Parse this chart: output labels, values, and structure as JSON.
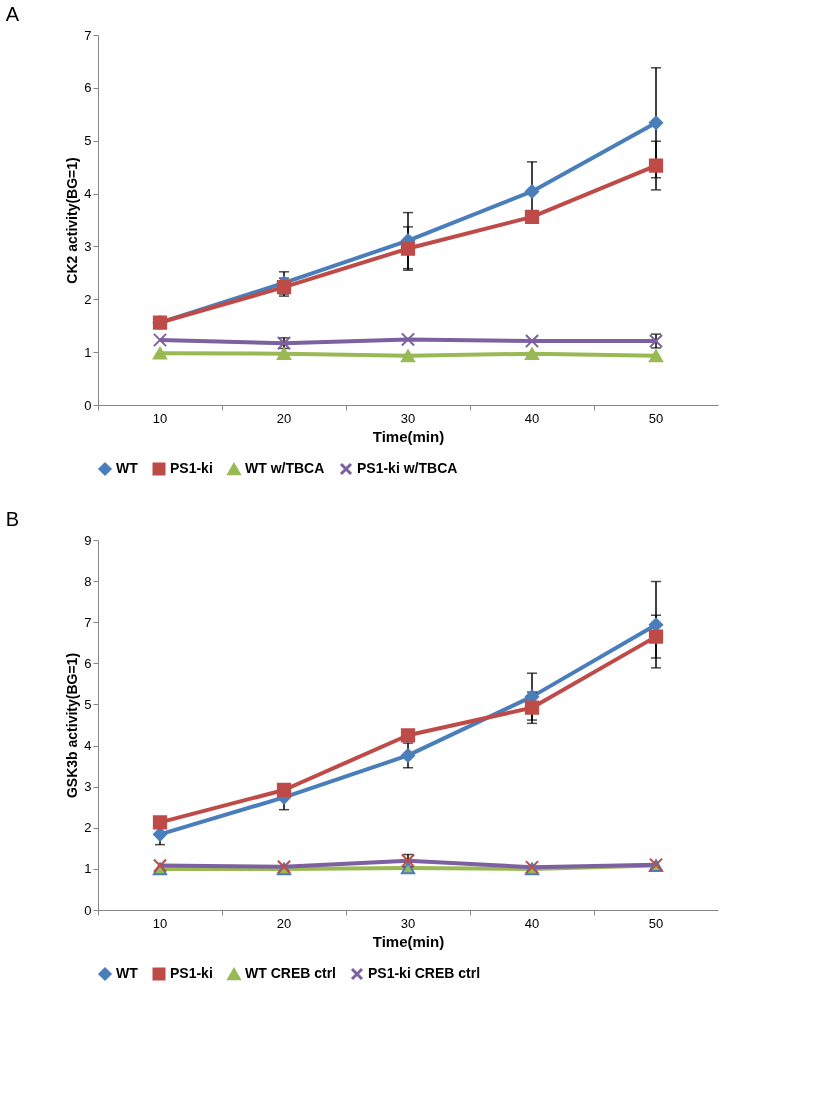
{
  "chart_data": [
    {
      "type": "line",
      "title": "A",
      "xlabel": "Time(min)",
      "ylabel": "CK2 activity(BG=1)",
      "categories": [
        "10",
        "20",
        "30",
        "40",
        "50"
      ],
      "ylim": [
        0,
        7
      ],
      "yticks": [
        0,
        1,
        2,
        3,
        4,
        5,
        6,
        7
      ],
      "grid": false,
      "legend": "bottom",
      "line_style": "solid",
      "series": [
        {
          "name": "WT",
          "color": "#4a7ebb",
          "marker": "diamond",
          "values": [
            1.56,
            2.31,
            3.11,
            4.04,
            5.34
          ],
          "errors": [
            null,
            0.21,
            0.53,
            0.56,
            1.04
          ]
        },
        {
          "name": "PS1-ki",
          "color": "#be4b48",
          "marker": "square",
          "values": [
            1.56,
            2.23,
            2.96,
            3.56,
            4.53
          ],
          "errors": [
            null,
            0.17,
            0.41,
            null,
            0.46
          ]
        },
        {
          "name": "WT w/TBCA",
          "color": "#98b954",
          "marker": "triangle",
          "values": [
            0.98,
            0.97,
            0.93,
            0.97,
            0.93
          ]
        },
        {
          "name": "PS1-ki w/TBCA",
          "color": "#7d60a0",
          "marker": "cross",
          "values": [
            1.23,
            1.17,
            1.24,
            1.21,
            1.21
          ],
          "errors": [
            null,
            0.1,
            null,
            null,
            0.13
          ]
        }
      ]
    },
    {
      "type": "line",
      "title": "B",
      "xlabel": "Time(min)",
      "ylabel": "GSK3b activity(BG=1)",
      "categories": [
        "10",
        "20",
        "30",
        "40",
        "50"
      ],
      "ylim": [
        0,
        9
      ],
      "yticks": [
        0,
        1,
        2,
        3,
        4,
        5,
        6,
        7,
        8,
        9
      ],
      "grid": false,
      "legend": "bottom",
      "line_style": "solid",
      "series": [
        {
          "name": "WT",
          "color": "#4a7ebb",
          "marker": "diamond",
          "values": [
            1.84,
            2.74,
            3.76,
            5.19,
            6.94
          ],
          "errors": [
            0.25,
            0.3,
            0.3,
            0.57,
            1.05
          ]
        },
        {
          "name": "PS1-ki",
          "color": "#be4b48",
          "marker": "square",
          "values": [
            2.13,
            2.92,
            4.25,
            4.92,
            6.65
          ],
          "errors": [
            null,
            null,
            null,
            0.38,
            0.52
          ]
        },
        {
          "name": "WT CREB ctrl",
          "color": "#98b954",
          "marker": "triangle",
          "values": [
            1.0,
            1.0,
            1.02,
            1.0,
            1.08
          ]
        },
        {
          "name": "PS1-ki CREB ctrl",
          "color": "#7d60a0",
          "marker": "cross",
          "values": [
            1.08,
            1.05,
            1.2,
            1.04,
            1.1
          ],
          "errors": [
            null,
            null,
            0.15,
            null,
            null
          ]
        }
      ]
    }
  ]
}
